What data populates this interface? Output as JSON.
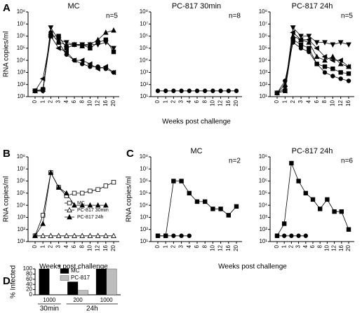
{
  "chart_data": [
    {
      "type": "line",
      "panel": "A",
      "title": "MC",
      "annotation": "n=5",
      "ylabel": "RNA copies/ml",
      "log_y": true,
      "ylim": [
        10,
        100000000
      ],
      "yticks": [
        {
          "value": 10,
          "label": "10¹"
        },
        {
          "value": 100,
          "label": "10²"
        },
        {
          "value": 1000,
          "label": "10³"
        },
        {
          "value": 10000,
          "label": "10⁴"
        },
        {
          "value": 100000,
          "label": "10⁵"
        },
        {
          "value": 1000000,
          "label": "10⁶"
        },
        {
          "value": 10000000,
          "label": "10⁷"
        },
        {
          "value": 100000000,
          "label": "10⁸"
        }
      ],
      "categories": [
        "0",
        "1",
        "2",
        "3",
        "4",
        "6",
        "8",
        "10",
        "12",
        "16",
        "20"
      ],
      "series": [
        {
          "color": "#000000",
          "marker": "triangle",
          "filled": true,
          "values": [
            30,
            40,
            2000000,
            300000,
            200000,
            200000,
            150000,
            200000,
            500000,
            2000000,
            3000000
          ]
        },
        {
          "color": "#000000",
          "marker": "square",
          "filled": true,
          "values": [
            30,
            40,
            1000000,
            1000000,
            100000,
            200000,
            200000,
            100000,
            300000,
            500000,
            50000
          ]
        },
        {
          "color": "#000000",
          "marker": "triangle-down",
          "filled": true,
          "values": [
            30,
            30,
            5000000,
            500000,
            300000,
            200000,
            200000,
            200000,
            200000,
            300000,
            100000
          ]
        },
        {
          "color": "#000000",
          "marker": "triangle-left",
          "filled": true,
          "values": [
            30,
            300,
            1000000,
            100000,
            50000,
            10000,
            10000,
            5000,
            2000,
            3000,
            1000
          ]
        },
        {
          "color": "#000000",
          "marker": "circle",
          "filled": true,
          "values": [
            30,
            30,
            2000000,
            300000,
            30000,
            10000,
            5000,
            3000,
            3000,
            2000,
            1000
          ]
        }
      ]
    },
    {
      "type": "line",
      "title": "PC-817 30min",
      "annotation": "n=8",
      "xlabel": "Weeks post challenge",
      "log_y": true,
      "ylim": [
        10,
        100000000
      ],
      "yticks": [
        {
          "value": 10,
          "label": "10¹"
        },
        {
          "value": 100,
          "label": "10²"
        },
        {
          "value": 1000,
          "label": "10³"
        },
        {
          "value": 10000,
          "label": "10⁴"
        },
        {
          "value": 100000,
          "label": "10⁵"
        },
        {
          "value": 1000000,
          "label": "10⁶"
        },
        {
          "value": 10000000,
          "label": "10⁷"
        },
        {
          "value": 100000000,
          "label": "10⁸"
        }
      ],
      "categories": [
        "0",
        "1",
        "2",
        "3",
        "4",
        "6",
        "8",
        "10",
        "12",
        "16",
        "20"
      ],
      "series": [
        {
          "color": "#000000",
          "marker": "circle",
          "filled": true,
          "values": [
            30,
            30,
            30,
            30,
            30,
            30,
            30,
            30,
            30,
            30,
            30
          ]
        }
      ]
    },
    {
      "type": "line",
      "title": "PC-817 24h",
      "annotation": "n=5",
      "log_y": true,
      "ylim": [
        10,
        100000000
      ],
      "yticks": [
        {
          "value": 10,
          "label": "10¹"
        },
        {
          "value": 100,
          "label": "10²"
        },
        {
          "value": 1000,
          "label": "10³"
        },
        {
          "value": 10000,
          "label": "10⁴"
        },
        {
          "value": 100000,
          "label": "10⁵"
        },
        {
          "value": 1000000,
          "label": "10⁶"
        },
        {
          "value": 10000000,
          "label": "10⁷"
        },
        {
          "value": 100000000,
          "label": "10⁸"
        }
      ],
      "categories": [
        "0",
        "1",
        "2",
        "3",
        "4",
        "6",
        "8",
        "10",
        "12",
        "16"
      ],
      "series": [
        {
          "color": "#000000",
          "marker": "triangle-down",
          "filled": true,
          "values": [
            20,
            50,
            5000000,
            1000000,
            1000000,
            300000,
            300000,
            200000,
            300000,
            200000
          ]
        },
        {
          "color": "#000000",
          "marker": "triangle-left",
          "filled": true,
          "values": [
            20,
            30,
            2000000,
            500000,
            500000,
            100000,
            20000,
            10000,
            10000,
            3000
          ]
        },
        {
          "color": "#000000",
          "marker": "triangle",
          "filled": true,
          "values": [
            20,
            100,
            1000000,
            500000,
            300000,
            20000,
            10000,
            20000,
            5000,
            3000
          ]
        },
        {
          "color": "#000000",
          "marker": "square",
          "filled": true,
          "values": [
            20,
            30,
            500000,
            200000,
            100000,
            5000,
            3000,
            2000,
            1000,
            800
          ]
        },
        {
          "color": "#000000",
          "marker": "circle",
          "filled": true,
          "values": [
            20,
            200,
            300000,
            100000,
            50000,
            5000,
            1000,
            500,
            300,
            200
          ]
        }
      ]
    },
    {
      "type": "line",
      "panel": "B",
      "ylabel": "RNA copies/ml",
      "xlabel": "Weeks post challenge",
      "log_y": true,
      "legend": "right",
      "ylim": [
        10,
        100000000
      ],
      "yticks": [
        {
          "value": 10,
          "label": "10¹"
        },
        {
          "value": 100,
          "label": "10²"
        },
        {
          "value": 1000,
          "label": "10³"
        },
        {
          "value": 10000,
          "label": "10⁴"
        },
        {
          "value": 100000,
          "label": "10⁵"
        },
        {
          "value": 1000000,
          "label": "10⁶"
        },
        {
          "value": 10000000,
          "label": "10⁷"
        },
        {
          "value": 100000000,
          "label": "10⁸"
        }
      ],
      "categories": [
        "0",
        "1",
        "2",
        "3",
        "4",
        "6",
        "8",
        "10",
        "12",
        "16",
        "20"
      ],
      "series": [
        {
          "name": "MC",
          "color": "#000000",
          "marker": "square",
          "filled": false,
          "values": [
            30,
            1500,
            5000000,
            300000,
            60000,
            100000,
            100000,
            150000,
            200000,
            400000,
            800000
          ]
        },
        {
          "name": "PC-817 30min",
          "color": "#000000",
          "marker": "triangle",
          "filled": false,
          "values": [
            30,
            30,
            30,
            30,
            30,
            30,
            30,
            30,
            30,
            30,
            30
          ]
        },
        {
          "name": "PC-817 24h",
          "color": "#000000",
          "marker": "triangle",
          "filled": true,
          "values": [
            30,
            300,
            5000000,
            300000,
            100000,
            10000,
            10000,
            10000,
            10000,
            10000,
            null
          ]
        }
      ]
    },
    {
      "type": "line",
      "panel": "C",
      "title": "MC",
      "annotation": "n=2",
      "ylabel": "RNA copies/ml",
      "xlabel": "Weeks post challenge",
      "log_y": true,
      "ylim": [
        10,
        100000000
      ],
      "yticks": [
        {
          "value": 10,
          "label": "10¹"
        },
        {
          "value": 100,
          "label": "10²"
        },
        {
          "value": 1000,
          "label": "10³"
        },
        {
          "value": 10000,
          "label": "10⁴"
        },
        {
          "value": 100000,
          "label": "10⁵"
        },
        {
          "value": 1000000,
          "label": "10⁶"
        },
        {
          "value": 10000000,
          "label": "10⁷"
        },
        {
          "value": 100000000,
          "label": "10⁸"
        }
      ],
      "categories": [
        "0",
        "1",
        "2",
        "3",
        "4",
        "6",
        "8",
        "10",
        "12",
        "16",
        "20"
      ],
      "series": [
        {
          "color": "#000000",
          "marker": "square",
          "filled": true,
          "values": [
            30,
            30,
            1000000,
            1000000,
            100000,
            20000,
            20000,
            5000,
            5000,
            1500,
            8000
          ]
        },
        {
          "color": "#000000",
          "marker": "circle",
          "filled": true,
          "values": [
            30,
            30,
            30,
            30,
            30,
            null,
            null,
            null,
            null,
            null,
            null
          ]
        }
      ]
    },
    {
      "type": "line",
      "title": "PC-817 24h",
      "annotation": "n=6",
      "log_y": true,
      "ylim": [
        10,
        100000000
      ],
      "yticks": [
        {
          "value": 10,
          "label": "10¹"
        },
        {
          "value": 100,
          "label": "10²"
        },
        {
          "value": 1000,
          "label": "10³"
        },
        {
          "value": 10000,
          "label": "10⁴"
        },
        {
          "value": 100000,
          "label": "10⁵"
        },
        {
          "value": 1000000,
          "label": "10⁶"
        },
        {
          "value": 10000000,
          "label": "10⁷"
        },
        {
          "value": 100000000,
          "label": "10⁸"
        }
      ],
      "categories": [
        "0",
        "1",
        "2",
        "3",
        "4",
        "6",
        "8",
        "10",
        "12",
        "16",
        "20"
      ],
      "series": [
        {
          "color": "#000000",
          "marker": "square",
          "filled": true,
          "values": [
            30,
            300,
            30000000,
            1000000,
            100000,
            30000,
            5000,
            30000,
            3000,
            3000,
            100
          ]
        },
        {
          "color": "#000000",
          "marker": "circle",
          "filled": true,
          "values": [
            30,
            30,
            30,
            30,
            30,
            null,
            null,
            null,
            null,
            null,
            null
          ]
        }
      ]
    },
    {
      "type": "bar",
      "panel": "D",
      "ylabel": "% Infected",
      "annotation": "*",
      "ylim": [
        0,
        100
      ],
      "yticks": [
        0,
        20,
        40,
        60,
        80,
        100
      ],
      "categories": [
        "1000",
        "200",
        "1000"
      ],
      "groups": [
        {
          "name": "30min",
          "members": [
            0
          ]
        },
        {
          "name": "24h",
          "members": [
            1,
            2
          ]
        }
      ],
      "series": [
        {
          "name": "MC",
          "color": "#000000",
          "values": [
            100,
            50,
            100
          ]
        },
        {
          "name": "PC-817",
          "color": "#bdbdbd",
          "values": [
            0,
            17,
            100
          ]
        }
      ]
    }
  ]
}
